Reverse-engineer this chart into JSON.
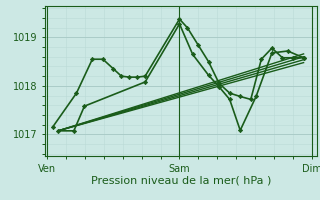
{
  "bg_color": "#cce8e4",
  "grid_major_color": "#aaccc8",
  "grid_minor_color": "#bbdad6",
  "line_color": "#1a5c1a",
  "xlabel": "Pression niveau de la mer( hPa )",
  "xlabel_fontsize": 8,
  "ytick_labels": [
    "1017",
    "1018",
    "1019"
  ],
  "ytick_vals": [
    1017,
    1018,
    1019
  ],
  "xtick_labels": [
    "Ven",
    "Sam",
    "Dim"
  ],
  "xtick_positions": [
    0.0,
    0.5,
    1.0
  ],
  "xlim": [
    -0.01,
    1.02
  ],
  "ylim": [
    1016.55,
    1019.65
  ],
  "tick_fontsize": 7,
  "series": [
    {
      "x": [
        0.02,
        0.11,
        0.17,
        0.21,
        0.25,
        0.28,
        0.31,
        0.34,
        0.37,
        0.5,
        0.53,
        0.57,
        0.61,
        0.65,
        0.69,
        0.73,
        0.77,
        0.81,
        0.85,
        0.89,
        0.93,
        0.97
      ],
      "y": [
        1017.15,
        1017.85,
        1018.55,
        1018.55,
        1018.35,
        1018.2,
        1018.18,
        1018.18,
        1018.2,
        1019.38,
        1019.2,
        1018.85,
        1018.5,
        1018.05,
        1017.85,
        1017.78,
        1017.72,
        1018.55,
        1018.78,
        1018.58,
        1018.58,
        1018.58
      ],
      "lw": 1.2,
      "marker": "D",
      "ms": 2.2
    },
    {
      "x": [
        0.04,
        0.1,
        0.14,
        0.37,
        0.5,
        0.55,
        0.61,
        0.65,
        0.69,
        0.73,
        0.79,
        0.85,
        0.91,
        0.97
      ],
      "y": [
        1017.07,
        1017.07,
        1017.58,
        1018.08,
        1019.28,
        1018.65,
        1018.22,
        1017.98,
        1017.72,
        1017.08,
        1017.78,
        1018.68,
        1018.72,
        1018.58
      ],
      "lw": 1.2,
      "marker": "D",
      "ms": 2.2
    },
    {
      "x": [
        0.04,
        0.97
      ],
      "y": [
        1017.07,
        1018.48
      ],
      "lw": 1.0,
      "marker": "None",
      "ms": 0
    },
    {
      "x": [
        0.04,
        0.97
      ],
      "y": [
        1017.07,
        1018.54
      ],
      "lw": 1.0,
      "marker": "None",
      "ms": 0
    },
    {
      "x": [
        0.04,
        0.97
      ],
      "y": [
        1017.07,
        1018.6
      ],
      "lw": 1.0,
      "marker": "None",
      "ms": 0
    },
    {
      "x": [
        0.04,
        0.97
      ],
      "y": [
        1017.07,
        1018.66
      ],
      "lw": 1.0,
      "marker": "None",
      "ms": 0
    }
  ]
}
